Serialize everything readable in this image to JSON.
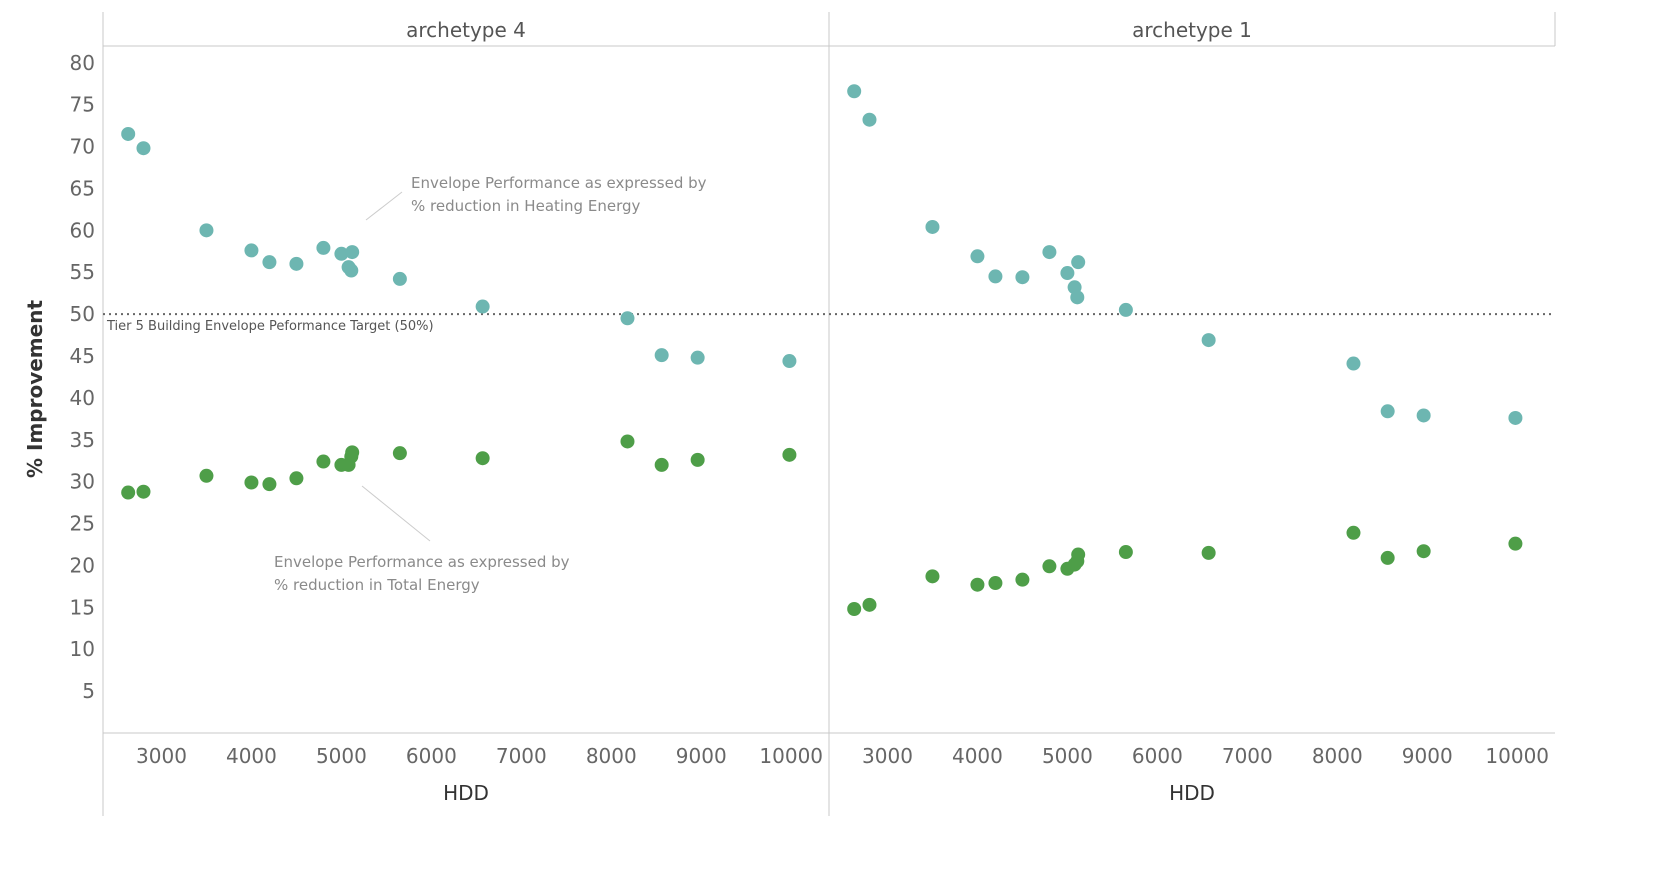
{
  "chart_data": {
    "type": "scatter",
    "ylabel": "% Improvement",
    "xlabel": "HDD",
    "ylim": [
      0,
      82
    ],
    "xlim": [
      2350,
      10420
    ],
    "yticks": [
      5,
      10,
      15,
      20,
      25,
      30,
      35,
      40,
      45,
      50,
      55,
      60,
      65,
      70,
      75,
      80
    ],
    "xticks": [
      3000,
      4000,
      5000,
      6000,
      7000,
      8000,
      9000,
      10000
    ],
    "grid": false,
    "colors": {
      "heating": "#6db6b1",
      "total": "#4e9e48"
    },
    "reference_line": {
      "y": 50,
      "label": "Tier 5 Building Envelope Peformance Target (50%)"
    },
    "annotations": {
      "heating": [
        "Envelope Performance as expressed by",
        "% reduction in Heating Energy"
      ],
      "total": [
        "Envelope Performance as expressed by",
        "% reduction in Total Energy"
      ]
    },
    "panels": [
      {
        "title": "archetype 4",
        "x": [
          2630,
          2800,
          3500,
          4000,
          4200,
          4500,
          4800,
          5000,
          5080,
          5110,
          5120,
          5650,
          6570,
          8180,
          8560,
          8960,
          9980
        ],
        "heating": [
          71.5,
          69.8,
          60.0,
          57.6,
          56.2,
          56.0,
          57.9,
          57.2,
          55.6,
          55.2,
          57.4,
          54.2,
          50.9,
          49.5,
          45.1,
          44.8,
          44.4
        ],
        "total": [
          28.7,
          28.8,
          30.7,
          29.9,
          29.7,
          30.4,
          32.4,
          32.0,
          32.0,
          33.0,
          33.5,
          33.4,
          32.8,
          34.8,
          32.0,
          32.6,
          33.2
        ]
      },
      {
        "title": "archetype 1",
        "x": [
          2630,
          2800,
          3500,
          4000,
          4200,
          4500,
          4800,
          5000,
          5080,
          5110,
          5120,
          5650,
          6570,
          8180,
          8560,
          8960,
          9980
        ],
        "heating": [
          76.6,
          73.2,
          60.4,
          56.9,
          54.5,
          54.4,
          57.4,
          54.9,
          53.2,
          52.0,
          56.2,
          50.5,
          46.9,
          44.1,
          38.4,
          37.9,
          37.6
        ],
        "total": [
          14.8,
          15.3,
          18.7,
          17.7,
          17.9,
          18.3,
          19.9,
          19.6,
          20.1,
          20.5,
          21.3,
          21.6,
          21.5,
          23.9,
          20.9,
          21.7,
          22.6
        ]
      }
    ]
  }
}
